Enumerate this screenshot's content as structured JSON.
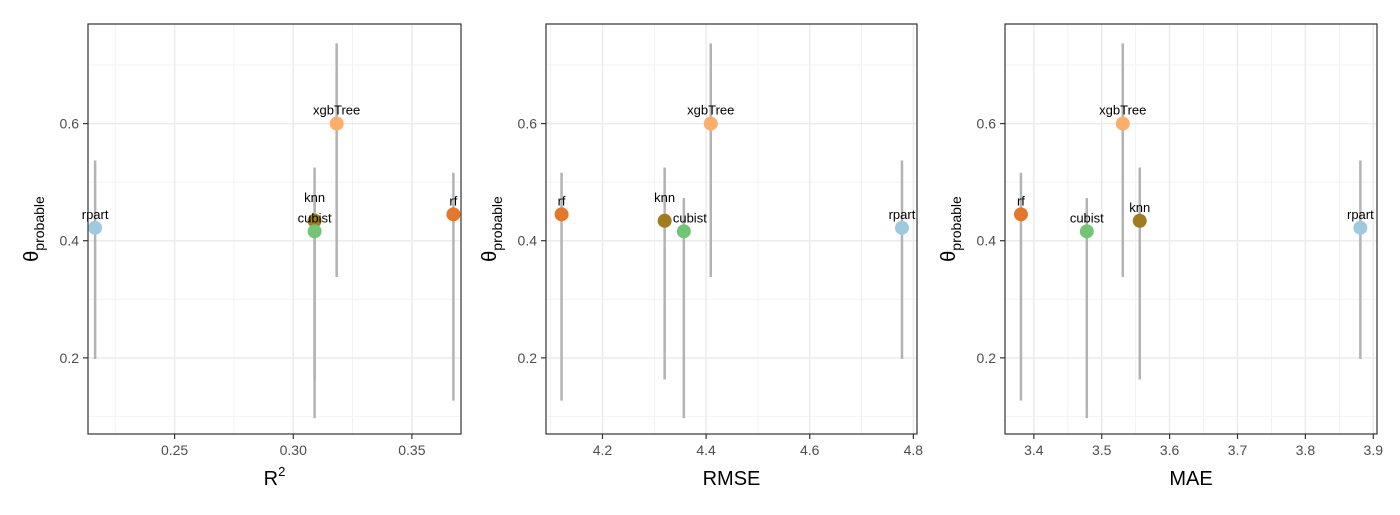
{
  "chart_data": [
    {
      "type": "scatter",
      "xlabel": "R",
      "xlabel_sup": "2",
      "ylabel": "θ",
      "ylabel_sub": "probable",
      "xlim": [
        0.2135,
        0.3707
      ],
      "ylim": [
        0.07,
        0.77
      ],
      "xticks": [
        0.25,
        0.3,
        0.35
      ],
      "xtick_labels": [
        "0.25",
        "0.30",
        "0.35"
      ],
      "yticks": [
        0.2,
        0.4,
        0.6
      ],
      "ytick_labels": [
        "0.2",
        "0.4",
        "0.6"
      ],
      "grid": true,
      "legend": "none",
      "points": [
        {
          "label": "rpart",
          "x": 0.2165,
          "y": 0.422,
          "lo": 0.198,
          "hi": 0.537,
          "color": "#9ecae1"
        },
        {
          "label": "knn",
          "x": 0.309,
          "y": 0.434,
          "lo": 0.163,
          "hi": 0.525,
          "color": "#a17c1f"
        },
        {
          "label": "cubist",
          "x": 0.309,
          "y": 0.416,
          "lo": 0.097,
          "hi": 0.473,
          "color": "#74c476"
        },
        {
          "label": "xgbTree",
          "x": 0.3183,
          "y": 0.6,
          "lo": 0.338,
          "hi": 0.737,
          "color": "#fdae6b"
        },
        {
          "label": "rf",
          "x": 0.3675,
          "y": 0.445,
          "lo": 0.127,
          "hi": 0.516,
          "color": "#e6772a"
        }
      ]
    },
    {
      "type": "scatter",
      "xlabel": "RMSE",
      "ylabel": "θ",
      "ylabel_sub": "probable",
      "xlim": [
        4.091,
        4.807
      ],
      "ylim": [
        0.07,
        0.77
      ],
      "xticks": [
        4.2,
        4.4,
        4.6,
        4.8
      ],
      "xtick_labels": [
        "4.2",
        "4.4",
        "4.6",
        "4.8"
      ],
      "yticks": [
        0.2,
        0.4,
        0.6
      ],
      "ytick_labels": [
        "0.2",
        "0.4",
        "0.6"
      ],
      "grid": true,
      "legend": "none",
      "points": [
        {
          "label": "rf",
          "x": 4.121,
          "y": 0.445,
          "lo": 0.127,
          "hi": 0.516,
          "color": "#e6772a"
        },
        {
          "label": "knn",
          "x": 4.32,
          "y": 0.434,
          "lo": 0.163,
          "hi": 0.525,
          "color": "#a17c1f"
        },
        {
          "label": "cubist",
          "x": 4.357,
          "y": 0.416,
          "lo": 0.097,
          "hi": 0.473,
          "color": "#74c476"
        },
        {
          "label": "xgbTree",
          "x": 4.409,
          "y": 0.6,
          "lo": 0.338,
          "hi": 0.737,
          "color": "#fdae6b"
        },
        {
          "label": "rpart",
          "x": 4.778,
          "y": 0.422,
          "lo": 0.198,
          "hi": 0.537,
          "color": "#9ecae1"
        }
      ]
    },
    {
      "type": "scatter",
      "xlabel": "MAE",
      "ylabel": "θ",
      "ylabel_sub": "probable",
      "xlim": [
        3.3575,
        3.9055
      ],
      "ylim": [
        0.07,
        0.77
      ],
      "xticks": [
        3.4,
        3.5,
        3.6,
        3.7,
        3.8,
        3.9
      ],
      "xtick_labels": [
        "3.4",
        "3.5",
        "3.6",
        "3.7",
        "3.8",
        "3.9"
      ],
      "yticks": [
        0.2,
        0.4,
        0.6
      ],
      "ytick_labels": [
        "0.2",
        "0.4",
        "0.6"
      ],
      "grid": true,
      "legend": "none",
      "points": [
        {
          "label": "rf",
          "x": 3.381,
          "y": 0.445,
          "lo": 0.127,
          "hi": 0.516,
          "color": "#e6772a"
        },
        {
          "label": "cubist",
          "x": 3.478,
          "y": 0.416,
          "lo": 0.097,
          "hi": 0.473,
          "color": "#74c476"
        },
        {
          "label": "xgbTree",
          "x": 3.531,
          "y": 0.6,
          "lo": 0.338,
          "hi": 0.737,
          "color": "#fdae6b"
        },
        {
          "label": "knn",
          "x": 3.556,
          "y": 0.434,
          "lo": 0.163,
          "hi": 0.525,
          "color": "#a17c1f"
        },
        {
          "label": "rpart",
          "x": 3.881,
          "y": 0.422,
          "lo": 0.198,
          "hi": 0.537,
          "color": "#9ecae1"
        }
      ]
    }
  ]
}
